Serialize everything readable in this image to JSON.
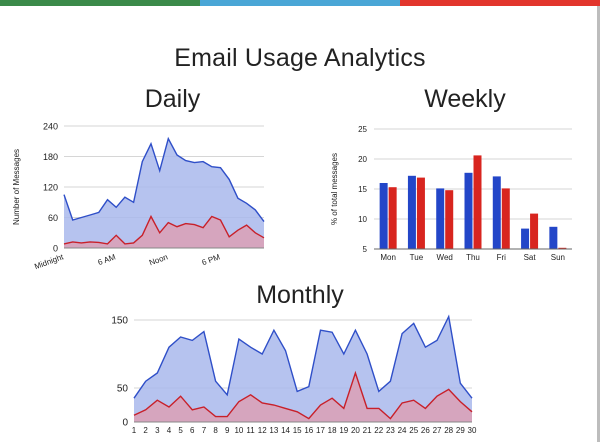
{
  "page": {
    "title": "Email Usage Analytics",
    "stripe_colors": [
      "#3b8a4a",
      "#4aa6d6",
      "#e2352c"
    ]
  },
  "colors": {
    "blue_line": "#2f4fc8",
    "blue_fill": "#a9b9ec",
    "red_line": "#c8202a",
    "red_fill": "#d9a2b8",
    "bar_blue": "#2346c8",
    "bar_red": "#d8251f",
    "grid": "#d6d6d6"
  },
  "chart_data": [
    {
      "id": "daily",
      "type": "area",
      "title": "Daily",
      "ylabel": "Number of Messages",
      "xlabel": "",
      "ylim": [
        0,
        240
      ],
      "yticks": [
        0,
        60,
        120,
        180,
        240
      ],
      "grid": true,
      "x": [
        0,
        1,
        2,
        3,
        4,
        5,
        6,
        7,
        8,
        9,
        10,
        11,
        12,
        13,
        14,
        15,
        16,
        17,
        18,
        19,
        20,
        21,
        22,
        23
      ],
      "x_tick_labels": [
        {
          "x": 0,
          "label": "Midnight"
        },
        {
          "x": 6,
          "label": "6 AM"
        },
        {
          "x": 12,
          "label": "Noon"
        },
        {
          "x": 18,
          "label": "6 PM"
        }
      ],
      "series": [
        {
          "values": [
            105,
            55,
            60,
            65,
            70,
            95,
            80,
            100,
            90,
            170,
            205,
            152,
            215,
            183,
            172,
            168,
            170,
            160,
            158,
            135,
            98,
            88,
            75,
            52
          ],
          "color": "blue"
        },
        {
          "values": [
            8,
            12,
            10,
            12,
            11,
            8,
            25,
            8,
            10,
            25,
            62,
            30,
            50,
            42,
            48,
            46,
            40,
            62,
            55,
            22,
            35,
            45,
            30,
            20
          ],
          "color": "red"
        }
      ]
    },
    {
      "id": "weekly",
      "type": "bar",
      "title": "Weekly",
      "ylabel": "% of total messages",
      "xlabel": "",
      "ylim": [
        5,
        25
      ],
      "yticks": [
        5,
        10,
        15,
        20,
        25
      ],
      "grid": true,
      "categories": [
        "Mon",
        "Tue",
        "Wed",
        "Thu",
        "Fri",
        "Sat",
        "Sun"
      ],
      "series": [
        {
          "values": [
            16.0,
            17.2,
            15.1,
            17.7,
            17.1,
            8.4,
            8.7
          ],
          "color": "blue"
        },
        {
          "values": [
            15.3,
            16.9,
            14.8,
            20.6,
            15.1,
            10.9,
            5.2
          ],
          "color": "red"
        }
      ]
    },
    {
      "id": "monthly",
      "type": "area",
      "title": "Monthly",
      "ylabel": "",
      "xlabel": "",
      "ylim": [
        0,
        150
      ],
      "yticks": [
        0,
        50,
        150
      ],
      "grid": true,
      "categories": [
        "1",
        "2",
        "3",
        "4",
        "5",
        "6",
        "7",
        "8",
        "9",
        "10",
        "11",
        "12",
        "13",
        "14",
        "15",
        "16",
        "17",
        "18",
        "19",
        "20",
        "21",
        "22",
        "23",
        "24",
        "25",
        "26",
        "27",
        "28",
        "29",
        "30"
      ],
      "series": [
        {
          "values": [
            35,
            60,
            72,
            110,
            125,
            120,
            133,
            60,
            40,
            122,
            110,
            100,
            135,
            105,
            45,
            52,
            135,
            132,
            100,
            135,
            100,
            45,
            60,
            130,
            145,
            110,
            120,
            155,
            57,
            35
          ],
          "color": "blue"
        },
        {
          "values": [
            10,
            18,
            32,
            22,
            38,
            18,
            22,
            8,
            8,
            30,
            40,
            28,
            25,
            20,
            15,
            5,
            25,
            35,
            20,
            72,
            20,
            20,
            5,
            28,
            32,
            20,
            38,
            48,
            30,
            15
          ],
          "color": "red"
        }
      ]
    }
  ]
}
